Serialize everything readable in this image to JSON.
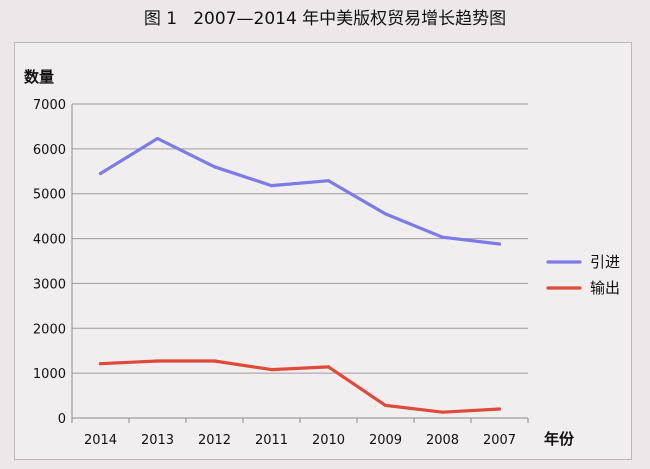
{
  "figure": {
    "title": "图 1   2007—2014 年中美版权贸易增长趋势图"
  },
  "chart_data": {
    "type": "line",
    "title": "图 1   2007—2014 年中美版权贸易增长趋势图",
    "xlabel": "年份",
    "ylabel": "数量",
    "categories": [
      "2014",
      "2013",
      "2012",
      "2011",
      "2010",
      "2009",
      "2008",
      "2007"
    ],
    "ylim": [
      0,
      7000
    ],
    "yticks": [
      0,
      1000,
      2000,
      3000,
      4000,
      5000,
      6000,
      7000
    ],
    "grid": true,
    "legend_position": "right",
    "series": [
      {
        "name": "引进",
        "color": "#7b7bea",
        "values": [
          5450,
          6230,
          5600,
          5180,
          5290,
          4550,
          4030,
          3880
        ]
      },
      {
        "name": "输出",
        "color": "#e04a3a",
        "values": [
          1210,
          1270,
          1270,
          1080,
          1140,
          280,
          130,
          200
        ]
      }
    ]
  }
}
